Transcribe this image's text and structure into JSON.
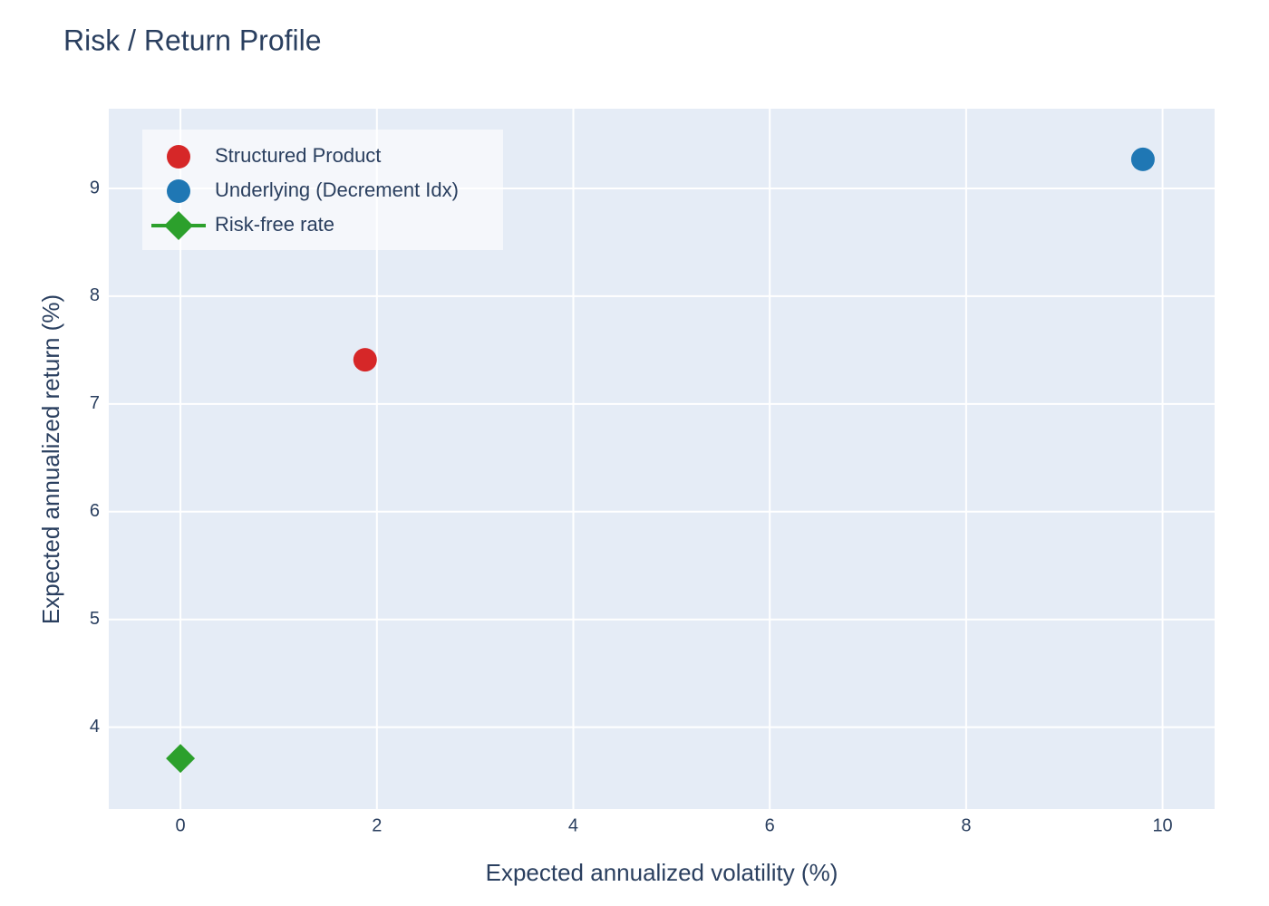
{
  "chart_data": {
    "type": "scatter",
    "title": "Risk / Return Profile",
    "x_label": "Expected annualized volatility (%)",
    "y_label": "Expected annualized return (%)",
    "xlim": [
      -0.73,
      10.53
    ],
    "ylim": [
      3.24,
      9.74
    ],
    "xticks": [
      0,
      2,
      4,
      6,
      8,
      10
    ],
    "yticks": [
      4,
      5,
      6,
      7,
      8,
      9
    ],
    "grid": true,
    "legend": "top-left",
    "series": [
      {
        "name": "Structured Product",
        "color": "#d62728",
        "symbol": "circle",
        "mode": "markers",
        "x": [
          1.88
        ],
        "values": [
          7.41
        ]
      },
      {
        "name": "Underlying (Decrement Idx)",
        "color": "#1f77b4",
        "symbol": "circle",
        "mode": "markers",
        "x": [
          9.8
        ],
        "values": [
          9.27
        ]
      },
      {
        "name": "Risk-free rate",
        "color": "#2ca02c",
        "symbol": "diamond",
        "mode": "lines+markers",
        "x": [
          0
        ],
        "values": [
          3.71
        ]
      }
    ]
  }
}
